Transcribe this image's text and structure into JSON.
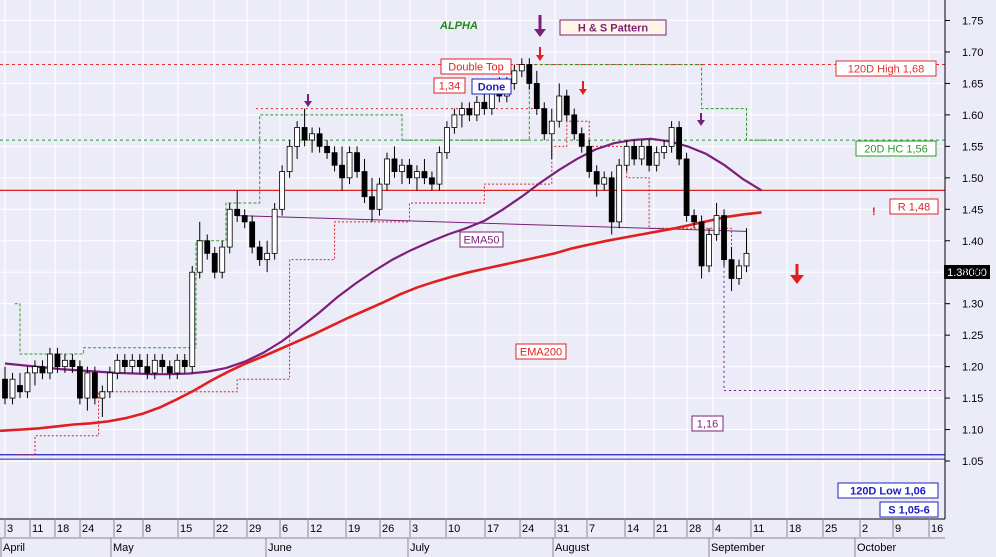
{
  "chart_data": {
    "type": "candlestick",
    "title": "ALPHA",
    "pattern_label": "H & S Pattern",
    "colors": {
      "background": "#ececf8",
      "ema50": "#7b1f7b",
      "ema200": "#e02020",
      "resistance": "#e02020",
      "support": "#2020c0",
      "high120": "#e03030",
      "hc20": "#2a9a2a",
      "title": "#1a8a1a",
      "pattern": "#7b1f7b",
      "bull": "#ffffff",
      "bear": "#000000"
    },
    "y_axis": {
      "min": 1.04,
      "max": 1.78,
      "ticks": [
        "1.05",
        "1.10",
        "1.15",
        "1.20",
        "1.25",
        "1.30",
        "1.35",
        "1.40",
        "1.45",
        "1.50",
        "1.55",
        "1.60",
        "1.65",
        "1.70",
        "1.75"
      ],
      "last_price": "1.38000"
    },
    "x_axis": {
      "day_ticks": [
        "3",
        "11",
        "18",
        "24",
        "2",
        "8",
        "15",
        "22",
        "29",
        "6",
        "12",
        "19",
        "26",
        "3",
        "10",
        "17",
        "24",
        "31",
        "7",
        "14",
        "21",
        "28",
        "4",
        "11",
        "18",
        "25",
        "2",
        "9",
        "16"
      ],
      "month_labels": [
        "April",
        "May",
        "June",
        "July",
        "August",
        "September",
        "October"
      ]
    },
    "levels": {
      "high120": {
        "label": "120D High 1,68",
        "value": 1.68
      },
      "hc20": {
        "label": "20D HC 1,56",
        "value": 1.56
      },
      "resistance": {
        "label": "R 1,48",
        "value": 1.48
      },
      "low120": {
        "label": "120D Low 1,06",
        "value": 1.06
      },
      "support": {
        "label": "S 1,05-6",
        "value": 1.053
      }
    },
    "annotations": {
      "double_top": "Double Top",
      "double_top_value": "1,34",
      "done": "Done",
      "target": "1,16",
      "ema50_label": "EMA50",
      "ema200_label": "EMA200",
      "exclamation": "!"
    },
    "candles": [
      [
        1.18,
        1.2,
        1.14,
        1.15
      ],
      [
        1.15,
        1.19,
        1.14,
        1.18
      ],
      [
        1.17,
        1.19,
        1.15,
        1.16
      ],
      [
        1.16,
        1.2,
        1.15,
        1.19
      ],
      [
        1.19,
        1.21,
        1.17,
        1.2
      ],
      [
        1.2,
        1.21,
        1.18,
        1.19
      ],
      [
        1.19,
        1.23,
        1.18,
        1.22
      ],
      [
        1.22,
        1.23,
        1.19,
        1.2
      ],
      [
        1.2,
        1.22,
        1.19,
        1.21
      ],
      [
        1.21,
        1.22,
        1.19,
        1.2
      ],
      [
        1.2,
        1.21,
        1.14,
        1.15
      ],
      [
        1.15,
        1.2,
        1.13,
        1.19
      ],
      [
        1.19,
        1.2,
        1.14,
        1.15
      ],
      [
        1.15,
        1.17,
        1.12,
        1.16
      ],
      [
        1.16,
        1.2,
        1.15,
        1.19
      ],
      [
        1.19,
        1.22,
        1.18,
        1.21
      ],
      [
        1.21,
        1.22,
        1.19,
        1.2
      ],
      [
        1.2,
        1.22,
        1.19,
        1.21
      ],
      [
        1.21,
        1.22,
        1.19,
        1.2
      ],
      [
        1.2,
        1.22,
        1.18,
        1.19
      ],
      [
        1.19,
        1.22,
        1.18,
        1.21
      ],
      [
        1.21,
        1.22,
        1.19,
        1.2
      ],
      [
        1.2,
        1.21,
        1.18,
        1.19
      ],
      [
        1.19,
        1.22,
        1.18,
        1.21
      ],
      [
        1.21,
        1.22,
        1.19,
        1.2
      ],
      [
        1.2,
        1.36,
        1.19,
        1.35
      ],
      [
        1.35,
        1.43,
        1.34,
        1.4
      ],
      [
        1.4,
        1.41,
        1.37,
        1.38
      ],
      [
        1.38,
        1.39,
        1.34,
        1.35
      ],
      [
        1.35,
        1.4,
        1.34,
        1.39
      ],
      [
        1.39,
        1.46,
        1.38,
        1.45
      ],
      [
        1.45,
        1.48,
        1.43,
        1.44
      ],
      [
        1.44,
        1.45,
        1.42,
        1.43
      ],
      [
        1.43,
        1.44,
        1.38,
        1.39
      ],
      [
        1.39,
        1.4,
        1.36,
        1.37
      ],
      [
        1.37,
        1.4,
        1.35,
        1.38
      ],
      [
        1.38,
        1.46,
        1.37,
        1.45
      ],
      [
        1.45,
        1.52,
        1.44,
        1.51
      ],
      [
        1.51,
        1.56,
        1.5,
        1.55
      ],
      [
        1.55,
        1.59,
        1.53,
        1.58
      ],
      [
        1.58,
        1.61,
        1.55,
        1.56
      ],
      [
        1.56,
        1.58,
        1.54,
        1.57
      ],
      [
        1.57,
        1.58,
        1.54,
        1.55
      ],
      [
        1.55,
        1.56,
        1.53,
        1.54
      ],
      [
        1.54,
        1.55,
        1.51,
        1.52
      ],
      [
        1.52,
        1.55,
        1.48,
        1.5
      ],
      [
        1.5,
        1.55,
        1.49,
        1.54
      ],
      [
        1.54,
        1.55,
        1.5,
        1.51
      ],
      [
        1.51,
        1.53,
        1.46,
        1.47
      ],
      [
        1.47,
        1.5,
        1.43,
        1.45
      ],
      [
        1.45,
        1.5,
        1.44,
        1.49
      ],
      [
        1.49,
        1.54,
        1.48,
        1.53
      ],
      [
        1.53,
        1.55,
        1.5,
        1.51
      ],
      [
        1.51,
        1.53,
        1.49,
        1.52
      ],
      [
        1.52,
        1.53,
        1.49,
        1.5
      ],
      [
        1.5,
        1.52,
        1.48,
        1.51
      ],
      [
        1.51,
        1.53,
        1.49,
        1.5
      ],
      [
        1.5,
        1.51,
        1.48,
        1.49
      ],
      [
        1.49,
        1.55,
        1.48,
        1.54
      ],
      [
        1.54,
        1.59,
        1.53,
        1.58
      ],
      [
        1.58,
        1.61,
        1.57,
        1.6
      ],
      [
        1.6,
        1.62,
        1.58,
        1.61
      ],
      [
        1.61,
        1.62,
        1.59,
        1.6
      ],
      [
        1.6,
        1.63,
        1.59,
        1.62
      ],
      [
        1.62,
        1.64,
        1.6,
        1.61
      ],
      [
        1.61,
        1.65,
        1.6,
        1.64
      ],
      [
        1.64,
        1.66,
        1.62,
        1.63
      ],
      [
        1.63,
        1.66,
        1.62,
        1.65
      ],
      [
        1.65,
        1.68,
        1.64,
        1.67
      ],
      [
        1.67,
        1.69,
        1.66,
        1.68
      ],
      [
        1.68,
        1.69,
        1.64,
        1.65
      ],
      [
        1.65,
        1.67,
        1.6,
        1.61
      ],
      [
        1.61,
        1.62,
        1.56,
        1.57
      ],
      [
        1.57,
        1.61,
        1.53,
        1.59
      ],
      [
        1.59,
        1.65,
        1.58,
        1.63
      ],
      [
        1.63,
        1.64,
        1.59,
        1.6
      ],
      [
        1.6,
        1.61,
        1.56,
        1.57
      ],
      [
        1.57,
        1.58,
        1.54,
        1.55
      ],
      [
        1.55,
        1.56,
        1.5,
        1.51
      ],
      [
        1.51,
        1.52,
        1.47,
        1.49
      ],
      [
        1.49,
        1.51,
        1.48,
        1.5
      ],
      [
        1.5,
        1.51,
        1.41,
        1.43
      ],
      [
        1.43,
        1.53,
        1.42,
        1.52
      ],
      [
        1.52,
        1.56,
        1.51,
        1.55
      ],
      [
        1.55,
        1.56,
        1.52,
        1.53
      ],
      [
        1.53,
        1.56,
        1.52,
        1.55
      ],
      [
        1.55,
        1.56,
        1.51,
        1.52
      ],
      [
        1.52,
        1.55,
        1.51,
        1.54
      ],
      [
        1.54,
        1.56,
        1.53,
        1.55
      ],
      [
        1.55,
        1.59,
        1.54,
        1.58
      ],
      [
        1.58,
        1.59,
        1.52,
        1.53
      ],
      [
        1.53,
        1.54,
        1.43,
        1.44
      ],
      [
        1.44,
        1.45,
        1.42,
        1.43
      ],
      [
        1.43,
        1.44,
        1.34,
        1.36
      ],
      [
        1.36,
        1.42,
        1.35,
        1.41
      ],
      [
        1.41,
        1.46,
        1.4,
        1.44
      ],
      [
        1.44,
        1.45,
        1.36,
        1.37
      ],
      [
        1.37,
        1.39,
        1.32,
        1.34
      ],
      [
        1.34,
        1.37,
        1.33,
        1.36
      ],
      [
        1.36,
        1.42,
        1.35,
        1.38
      ]
    ],
    "ema50": [
      1.205,
      1.202,
      1.199,
      1.196,
      1.194,
      1.192,
      1.19,
      1.189,
      1.188,
      1.188,
      1.189,
      1.192,
      1.198,
      1.208,
      1.222,
      1.24,
      1.262,
      1.285,
      1.31,
      1.332,
      1.352,
      1.37,
      1.385,
      1.398,
      1.41,
      1.42,
      1.432,
      1.45,
      1.47,
      1.492,
      1.512,
      1.53,
      1.545,
      1.555,
      1.56,
      1.562,
      1.558,
      1.55,
      1.538,
      1.52,
      1.498,
      1.48
    ],
    "ema200": [
      1.098,
      1.1,
      1.102,
      1.105,
      1.108,
      1.11,
      1.113,
      1.118,
      1.125,
      1.135,
      1.148,
      1.162,
      1.178,
      1.192,
      1.205,
      1.216,
      1.228,
      1.24,
      1.252,
      1.265,
      1.278,
      1.29,
      1.302,
      1.315,
      1.326,
      1.335,
      1.343,
      1.35,
      1.356,
      1.362,
      1.368,
      1.374,
      1.38,
      1.388,
      1.394,
      1.4,
      1.405,
      1.41,
      1.415,
      1.42,
      1.426,
      1.432,
      1.438,
      1.442,
      1.445
    ],
    "hc20_step": [
      [
        1.3,
        1.3
      ],
      [
        2.0,
        1.22
      ],
      [
        10.0,
        1.22
      ],
      [
        10.5,
        1.23
      ],
      [
        24.5,
        1.23
      ],
      [
        25.5,
        1.4
      ],
      [
        29.5,
        1.46
      ],
      [
        33.0,
        1.46
      ],
      [
        34.0,
        1.6
      ],
      [
        43.0,
        1.6
      ],
      [
        44.0,
        1.6
      ],
      [
        52.0,
        1.6
      ],
      [
        53.0,
        1.56
      ],
      [
        60.0,
        1.56
      ],
      [
        61.0,
        1.56
      ],
      [
        70.0,
        1.68
      ],
      [
        89.0,
        1.68
      ],
      [
        90.0,
        1.68
      ],
      [
        93.0,
        1.61
      ],
      [
        98.0,
        1.61
      ],
      [
        99.0,
        1.56
      ],
      [
        104.0,
        1.56
      ]
    ],
    "low20_step": [
      [
        1.3,
        1.06
      ],
      [
        3.5,
        1.06
      ],
      [
        4.0,
        1.09
      ],
      [
        11.5,
        1.09
      ],
      [
        12.5,
        1.16
      ],
      [
        30.0,
        1.16
      ],
      [
        31.0,
        1.18
      ],
      [
        37.0,
        1.18
      ],
      [
        38.0,
        1.37
      ],
      [
        43.0,
        1.37
      ],
      [
        44.0,
        1.43
      ],
      [
        53.0,
        1.43
      ],
      [
        54.0,
        1.46
      ],
      [
        63.0,
        1.46
      ],
      [
        64.0,
        1.49
      ],
      [
        72.0,
        1.49
      ],
      [
        73.0,
        1.55
      ],
      [
        75.0,
        1.59
      ],
      [
        78.0,
        1.55
      ],
      [
        83.0,
        1.5
      ],
      [
        86.0,
        1.42
      ],
      [
        96.0,
        1.42
      ],
      [
        97.0,
        1.34
      ]
    ],
    "neckline": [
      [
        31,
        1.44
      ],
      [
        99,
        1.415
      ]
    ],
    "double_top_line": [
      [
        33.5,
        1.61
      ],
      [
        72,
        1.61
      ]
    ],
    "target_line": [
      [
        96,
        1.162
      ],
      [
        125,
        1.162
      ]
    ]
  }
}
